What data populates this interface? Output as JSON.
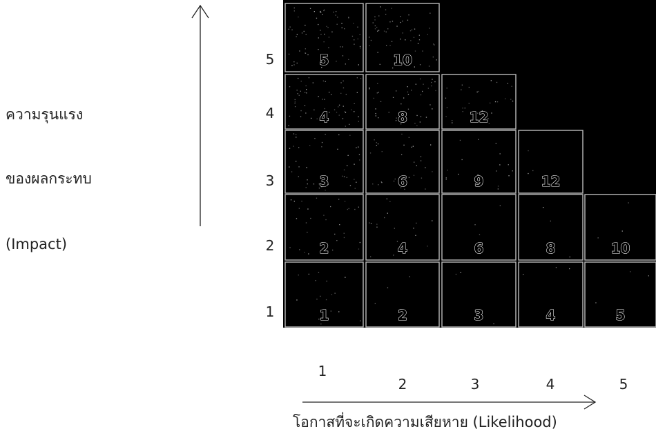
{
  "impact_label": {
    "line1": "ความรุนแรง",
    "line2": "ของผลกระทบ",
    "line3": "(Impact)"
  },
  "likelihood_label": "โอกาสที่จะเกิดความเสียหาย (Likelihood)",
  "row_labels": [
    "5",
    "4",
    "3",
    "2",
    "1"
  ],
  "col_labels": [
    "1",
    "2",
    "3",
    "4",
    "5"
  ],
  "cells": [
    {
      "impact": 5,
      "likelihood": 1,
      "score": "5"
    },
    {
      "impact": 5,
      "likelihood": 2,
      "score": "10"
    },
    {
      "impact": 4,
      "likelihood": 1,
      "score": "4"
    },
    {
      "impact": 4,
      "likelihood": 2,
      "score": "8"
    },
    {
      "impact": 4,
      "likelihood": 3,
      "score": "12"
    },
    {
      "impact": 3,
      "likelihood": 1,
      "score": "3"
    },
    {
      "impact": 3,
      "likelihood": 2,
      "score": "6"
    },
    {
      "impact": 3,
      "likelihood": 3,
      "score": "9"
    },
    {
      "impact": 3,
      "likelihood": 4,
      "score": "12"
    },
    {
      "impact": 2,
      "likelihood": 1,
      "score": "2"
    },
    {
      "impact": 2,
      "likelihood": 2,
      "score": "4"
    },
    {
      "impact": 2,
      "likelihood": 3,
      "score": "6"
    },
    {
      "impact": 2,
      "likelihood": 4,
      "score": "8"
    },
    {
      "impact": 2,
      "likelihood": 5,
      "score": "10"
    },
    {
      "impact": 1,
      "likelihood": 1,
      "score": "1"
    },
    {
      "impact": 1,
      "likelihood": 2,
      "score": "2"
    },
    {
      "impact": 1,
      "likelihood": 3,
      "score": "3"
    },
    {
      "impact": 1,
      "likelihood": 4,
      "score": "4"
    },
    {
      "impact": 1,
      "likelihood": 5,
      "score": "5"
    }
  ],
  "colors": {
    "cell_fill": "#000000",
    "cell_border": "#bbbbbb",
    "speckle": "#cccccc"
  }
}
